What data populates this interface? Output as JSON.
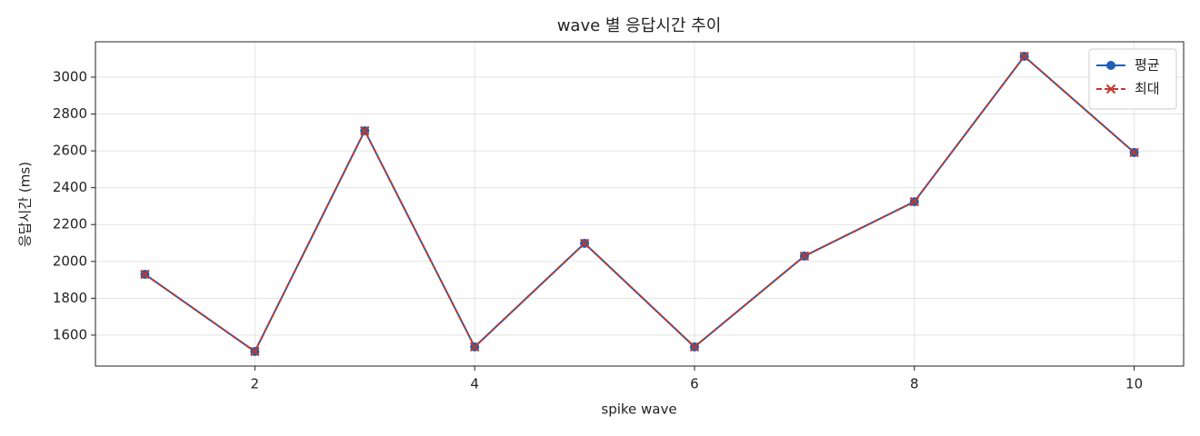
{
  "chart_data": {
    "type": "line",
    "title": "wave 별 응답시간 추이",
    "x_label": "spike wave",
    "y_label": "응답시간 (ms)",
    "x": [
      1,
      2,
      3,
      4,
      5,
      6,
      7,
      8,
      9,
      10
    ],
    "series": [
      {
        "name": "평균",
        "color": "#1f5fb4",
        "marker": "circle",
        "dash": false,
        "values": [
          1930,
          1511,
          2709,
          1536,
          2098,
          1536,
          2029,
          2324,
          3113,
          2591
        ]
      },
      {
        "name": "최대",
        "color": "#c0392b",
        "marker": "x",
        "dash": true,
        "values": [
          1930,
          1511,
          2709,
          1536,
          2098,
          1536,
          2029,
          2324,
          3113,
          2591
        ]
      }
    ],
    "xlim": [
      0.55,
      10.45
    ],
    "xticks": [
      2,
      4,
      6,
      8,
      10
    ],
    "ylim": [
      1432,
      3192
    ],
    "yticks": [
      1600,
      1800,
      2000,
      2200,
      2400,
      2600,
      2800,
      3000
    ],
    "grid": true,
    "legend": "upper right"
  }
}
